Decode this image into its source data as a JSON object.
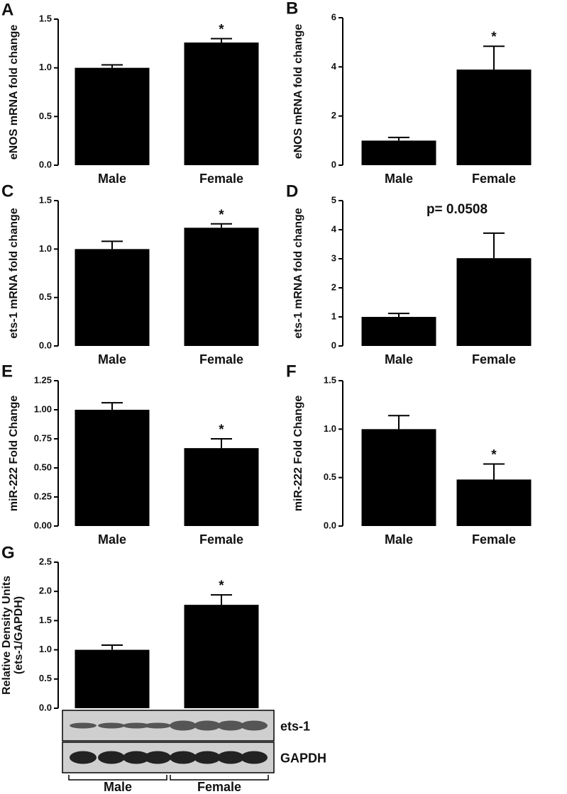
{
  "chart_data": [
    {
      "type": "bar",
      "panel": "A",
      "ylabel": "eNOS mRNA fold change",
      "categories": [
        "Male",
        "Female"
      ],
      "values": [
        1.0,
        1.26
      ],
      "errors": [
        0.03,
        0.04
      ],
      "color": "#000000",
      "ylim": [
        0,
        1.5
      ],
      "yticks": [
        {
          "value": 0,
          "label": "0.0"
        },
        0.5,
        {
          "value": 1,
          "label": "1.0"
        },
        1.5
      ],
      "annotation": "*"
    },
    {
      "type": "bar",
      "panel": "B",
      "ylabel": "eNOS mRNA fold change",
      "categories": [
        "Male",
        "Female"
      ],
      "values": [
        1.0,
        3.89
      ],
      "errors": [
        0.13,
        0.95
      ],
      "color": "#000000",
      "ylim": [
        0,
        6
      ],
      "yticks": [
        0,
        2,
        4,
        6
      ],
      "annotation": "*"
    },
    {
      "type": "bar",
      "panel": "C",
      "ylabel": "ets-1 mRNA fold change",
      "categories": [
        "Male",
        "Female"
      ],
      "values": [
        1.0,
        1.22
      ],
      "errors": [
        0.08,
        0.04
      ],
      "color": "#000000",
      "ylim": [
        0,
        1.5
      ],
      "yticks": [
        {
          "value": 0,
          "label": "0.0"
        },
        0.5,
        {
          "value": 1,
          "label": "1.0"
        },
        1.5
      ],
      "annotation": "*"
    },
    {
      "type": "bar",
      "panel": "D",
      "ylabel": "ets-1 mRNA fold change",
      "categories": [
        "Male",
        "Female"
      ],
      "values": [
        1.0,
        3.02
      ],
      "errors": [
        0.12,
        0.86
      ],
      "color": "#000000",
      "ylim": [
        0,
        5
      ],
      "yticks": [
        0,
        1,
        2,
        3,
        4,
        5
      ],
      "annotation": "p= 0.0508"
    },
    {
      "type": "bar",
      "panel": "E",
      "ylabel": "miR-222 Fold Change",
      "categories": [
        "Male",
        "Female"
      ],
      "values": [
        1.0,
        0.67
      ],
      "errors": [
        0.06,
        0.08
      ],
      "color": "#000000",
      "ylim": [
        0,
        1.25
      ],
      "yticks": [
        {
          "value": 0,
          "label": "0.00"
        },
        0.25,
        {
          "value": 0.5,
          "label": "0.50"
        },
        0.75,
        {
          "value": 1,
          "label": "1.00"
        },
        1.25
      ],
      "annotation": "*"
    },
    {
      "type": "bar",
      "panel": "F",
      "ylabel": "miR-222 Fold Change",
      "categories": [
        "Male",
        "Female"
      ],
      "values": [
        1.0,
        0.48
      ],
      "errors": [
        0.14,
        0.16
      ],
      "color": "#000000",
      "ylim": [
        0,
        1.5
      ],
      "yticks": [
        {
          "value": 0,
          "label": "0.0"
        },
        0.5,
        {
          "value": 1,
          "label": "1.0"
        },
        1.5
      ],
      "annotation": "*"
    },
    {
      "type": "bar",
      "panel": "G",
      "ylabel": [
        "Relative Density Units",
        "(ets-1/GAPDH)"
      ],
      "categories": [
        null,
        null
      ],
      "values": [
        1.0,
        1.77
      ],
      "errors": [
        0.08,
        0.17
      ],
      "color": "#000000",
      "ylim": [
        0,
        2.5
      ],
      "yticks": [
        {
          "value": 0,
          "label": "0.0"
        },
        0.5,
        {
          "value": 1,
          "label": "1.0"
        },
        1.5,
        {
          "value": 2,
          "label": "2.0"
        },
        2.5
      ],
      "annotation": "*",
      "blot": {
        "rows": [
          "ets-1",
          "GAPDH"
        ],
        "groups": [
          "Male",
          "Female"
        ]
      }
    }
  ]
}
